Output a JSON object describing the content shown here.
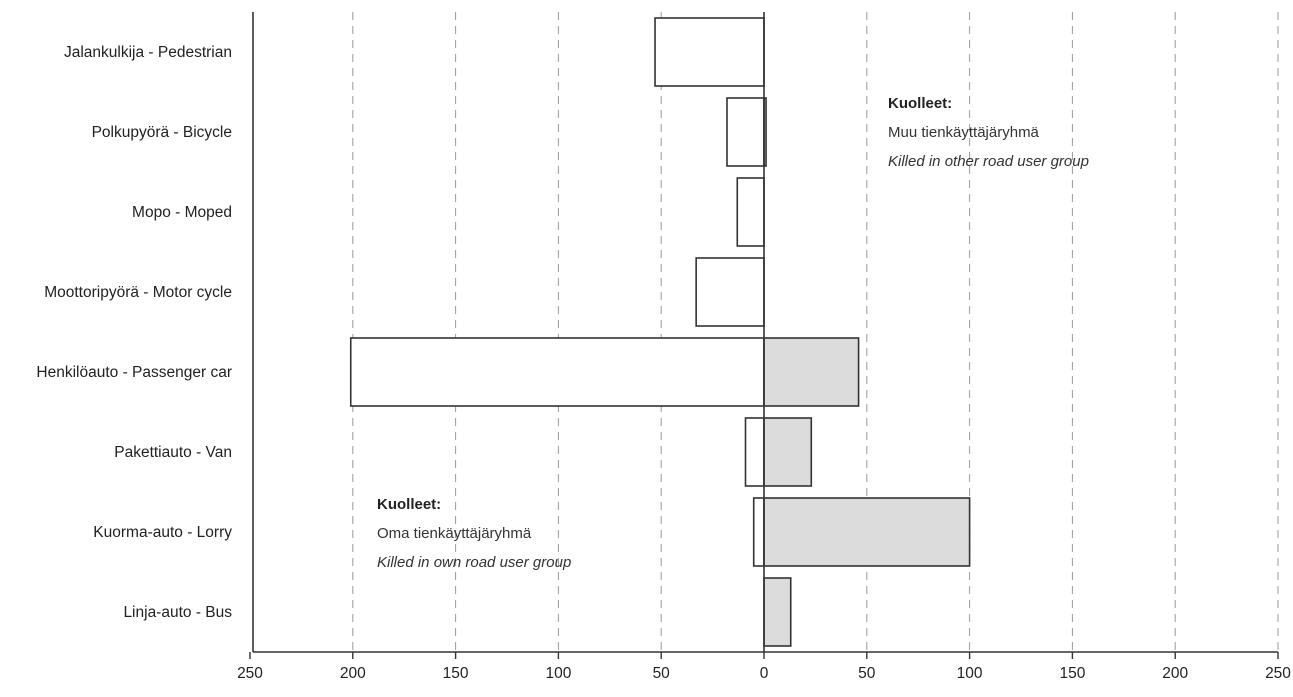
{
  "chart_data": {
    "type": "bar",
    "orientation": "horizontal",
    "diverging": true,
    "categories": [
      "Jalankulkija - Pedestrian",
      "Polkupyörä - Bicycle",
      "Mopo - Moped",
      "Moottoripyörä - Motor cycle",
      "Henkilöauto - Passenger car",
      "Pakettiauto - Van",
      "Kuorma-auto - Lorry",
      "Linja-auto - Bus"
    ],
    "series": [
      {
        "name": "Kuolleet: Oma tienkäyttäjäryhmä / Killed in own road user group",
        "side": "left",
        "color": "#ffffff",
        "values": [
          53,
          18,
          13,
          33,
          201,
          9,
          5,
          0
        ]
      },
      {
        "name": "Kuolleet: Muu tienkäyttäjäryhmä / Killed in other road user group",
        "side": "right",
        "color": "#dcdcdc",
        "values": [
          0,
          1,
          0,
          0,
          46,
          23,
          100,
          13
        ]
      }
    ],
    "xlim_left": [
      250,
      0
    ],
    "xlim_right": [
      0,
      250
    ],
    "x_ticks": [
      "250",
      "200",
      "150",
      "100",
      "50",
      "0",
      "50",
      "100",
      "150",
      "200",
      "250"
    ],
    "grid": "vertical dashed",
    "annotations": {
      "right": {
        "title": "Kuolleet:",
        "line1": "Muu tienkäyttäjäryhmä",
        "line2": "Killed in other road user group"
      },
      "left": {
        "title": "Kuolleet:",
        "line1": "Oma tienkäyttäjäryhmä",
        "line2": "Killed in own road user group"
      }
    }
  }
}
